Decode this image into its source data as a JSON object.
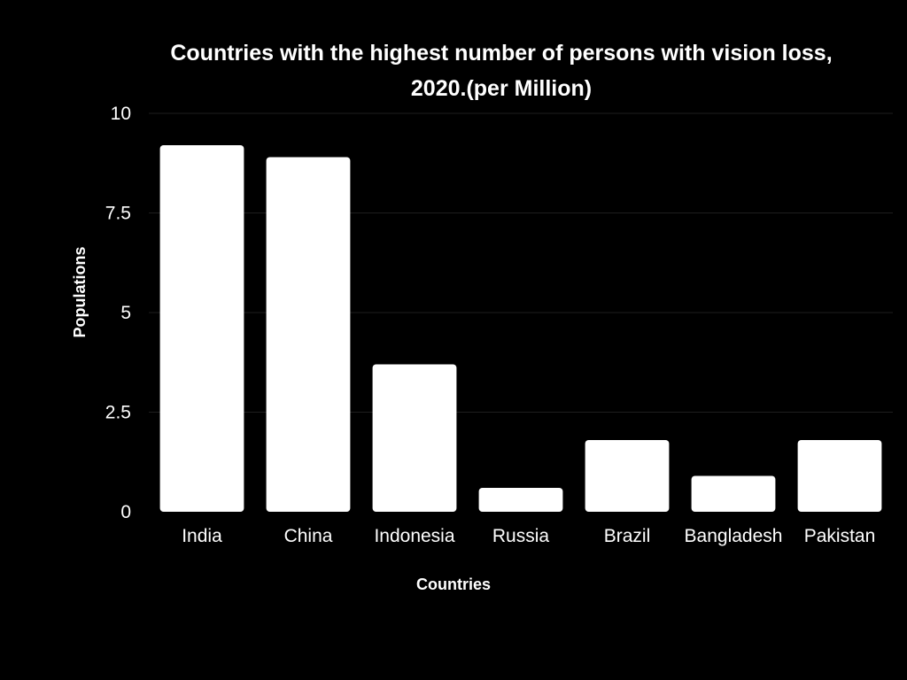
{
  "chart_data": {
    "type": "bar",
    "title": "Countries with the highest number of persons with vision loss, 2020.(per Million)",
    "xlabel": "Countries",
    "ylabel": "Populations",
    "categories": [
      "India",
      "China",
      "Indonesia",
      "Russia",
      "Brazil",
      "Bangladesh",
      "Pakistan"
    ],
    "values": [
      9.2,
      8.9,
      3.7,
      0.6,
      1.8,
      0.9,
      1.8
    ],
    "ylim": [
      0,
      10
    ],
    "yticks": [
      0,
      2.5,
      5,
      7.5,
      10
    ],
    "ytick_labels": [
      "0",
      "2.5",
      "5",
      "7.5",
      "10"
    ],
    "grid": true,
    "legend": "none",
    "colors": {
      "background": "#000000",
      "bar": "#ffffff",
      "text": "#ffffff",
      "grid": "#1e1e1e"
    }
  }
}
